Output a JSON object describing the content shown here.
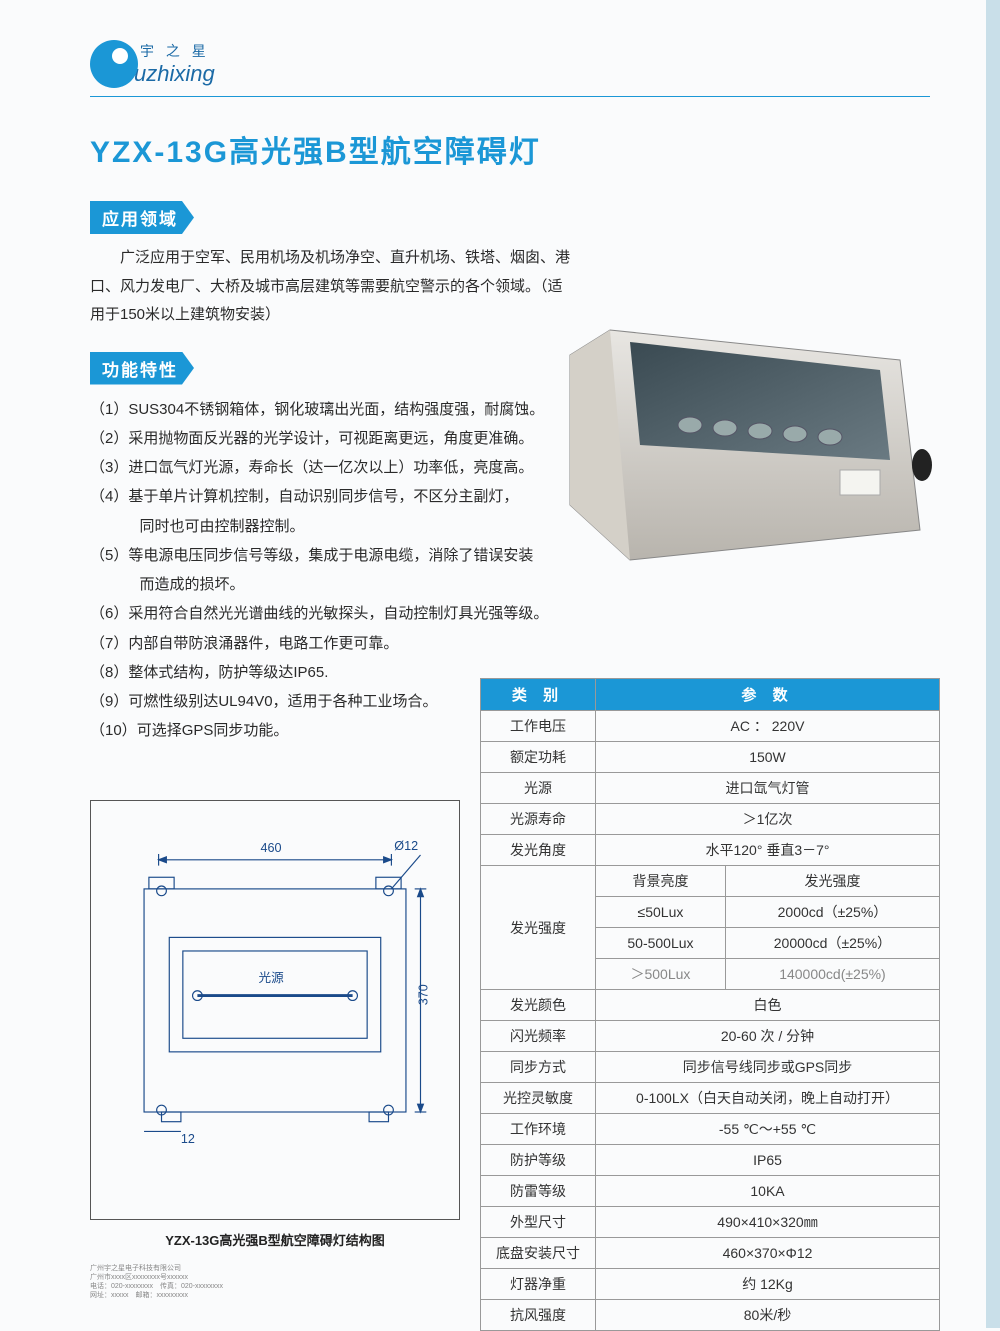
{
  "brand": {
    "cn": "宇 之 星",
    "en": "uzhixing"
  },
  "title": "YZX-13G高光强B型航空障碍灯",
  "sections": {
    "applications_label": "应用领域",
    "features_label": "功能特性"
  },
  "applications_text": "广泛应用于空军、民用机场及机场净空、直升机场、铁塔、烟囱、港口、风力发电厂、大桥及城市高层建筑等需要航空警示的各个领域。（适用于150米以上建筑物安装）",
  "features": [
    {
      "n": "（1）",
      "t": "SUS304不锈钢箱体，钢化玻璃出光面，结构强度强，耐腐蚀。"
    },
    {
      "n": "（2）",
      "t": "采用抛物面反光器的光学设计，可视距离更远，角度更准确。"
    },
    {
      "n": "（3）",
      "t": "进口氙气灯光源，寿命长（达一亿次以上）功率低，亮度高。"
    },
    {
      "n": "（4）",
      "t": "基于单片计算机控制，自动识别同步信号，不区分主副灯，",
      "cont": "同时也可由控制器控制。"
    },
    {
      "n": "（5）",
      "t": "等电源电压同步信号等级，集成于电源电缆，消除了错误安装",
      "cont": "而造成的损坏。"
    },
    {
      "n": "（6）",
      "t": "采用符合自然光光谱曲线的光敏探头，自动控制灯具光强等级。"
    },
    {
      "n": "（7）",
      "t": "内部自带防浪涌器件，电路工作更可靠。"
    },
    {
      "n": "（8）",
      "t": "整体式结构，防护等级达IP65."
    },
    {
      "n": "（9）",
      "t": "可燃性级别达UL94V0，适用于各种工业场合。"
    },
    {
      "n": "（10）",
      "t": "可选择GPS同步功能。"
    }
  ],
  "diagram": {
    "caption": "YZX-13G高光强B型航空障碍灯结构图",
    "width_label": "460",
    "height_label": "370",
    "hole_label": "Ø12",
    "spacing_label": "12",
    "source_label": "光源"
  },
  "spec": {
    "header_category": "类 别",
    "header_param": "参 数",
    "rows_simple_top": [
      {
        "k": "工作电压",
        "v": "AC ： 220V"
      },
      {
        "k": "额定功耗",
        "v": "150W"
      },
      {
        "k": "光源",
        "v": "进口氙气灯管"
      },
      {
        "k": "光源寿命",
        "v": "＞1亿次"
      },
      {
        "k": "发光角度",
        "v": "水平120° 垂直3－7°"
      }
    ],
    "intensity": {
      "label": "发光强度",
      "sub_bg": "背景亮度",
      "sub_int": "发光强度",
      "rows": [
        {
          "bg": "≤50Lux",
          "val": "2000cd（±25%）",
          "faded": false
        },
        {
          "bg": "50-500Lux",
          "val": "20000cd（±25%）",
          "faded": false
        },
        {
          "bg": "＞500Lux",
          "val": "140000cd(±25%)",
          "faded": true
        }
      ]
    },
    "rows_simple_bottom": [
      {
        "k": "发光颜色",
        "v": "白色"
      },
      {
        "k": "闪光频率",
        "v": "20-60 次 / 分钟"
      },
      {
        "k": "同步方式",
        "v": "同步信号线同步或GPS同步"
      },
      {
        "k": "光控灵敏度",
        "v": "0-100LX（白天自动关闭，晚上自动打开）"
      },
      {
        "k": "工作环境",
        "v": "-55 ℃～+55 ℃"
      },
      {
        "k": "防护等级",
        "v": "IP65"
      },
      {
        "k": "防雷等级",
        "v": "10KA"
      },
      {
        "k": "外型尺寸",
        "v": "490×410×320㎜"
      },
      {
        "k": "底盘安装尺寸",
        "v": "460×370×Φ12"
      },
      {
        "k": "灯器净重",
        "v": "约 12Kg"
      },
      {
        "k": "抗风强度",
        "v": "80米/秒"
      }
    ]
  },
  "colors": {
    "primary": "#1b97d6",
    "text": "#2a2a2a",
    "border": "#999999",
    "side": "#c9dfe9"
  }
}
